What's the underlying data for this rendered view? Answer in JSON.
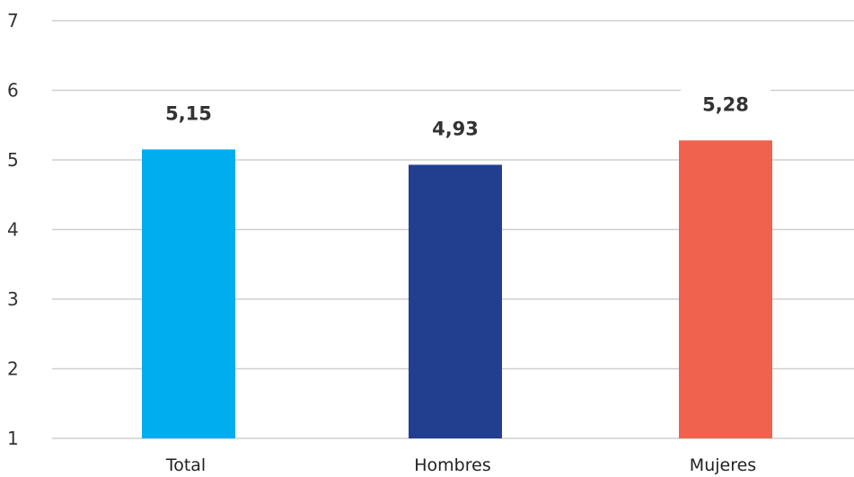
{
  "chart_data": {
    "type": "bar",
    "categories": [
      "Total",
      "Hombres",
      "Mujeres"
    ],
    "values": [
      5.15,
      4.93,
      5.28
    ],
    "value_labels": [
      "5,15",
      "4,93",
      "5,28"
    ],
    "colors": [
      "#00AEEF",
      "#223F8F",
      "#F0624D"
    ],
    "ylim": [
      1,
      7
    ],
    "yticks": [
      "1",
      "2",
      "3",
      "4",
      "5",
      "6",
      "7"
    ],
    "grid": true,
    "legend": "none",
    "title": "",
    "xlabel": "",
    "ylabel": ""
  }
}
